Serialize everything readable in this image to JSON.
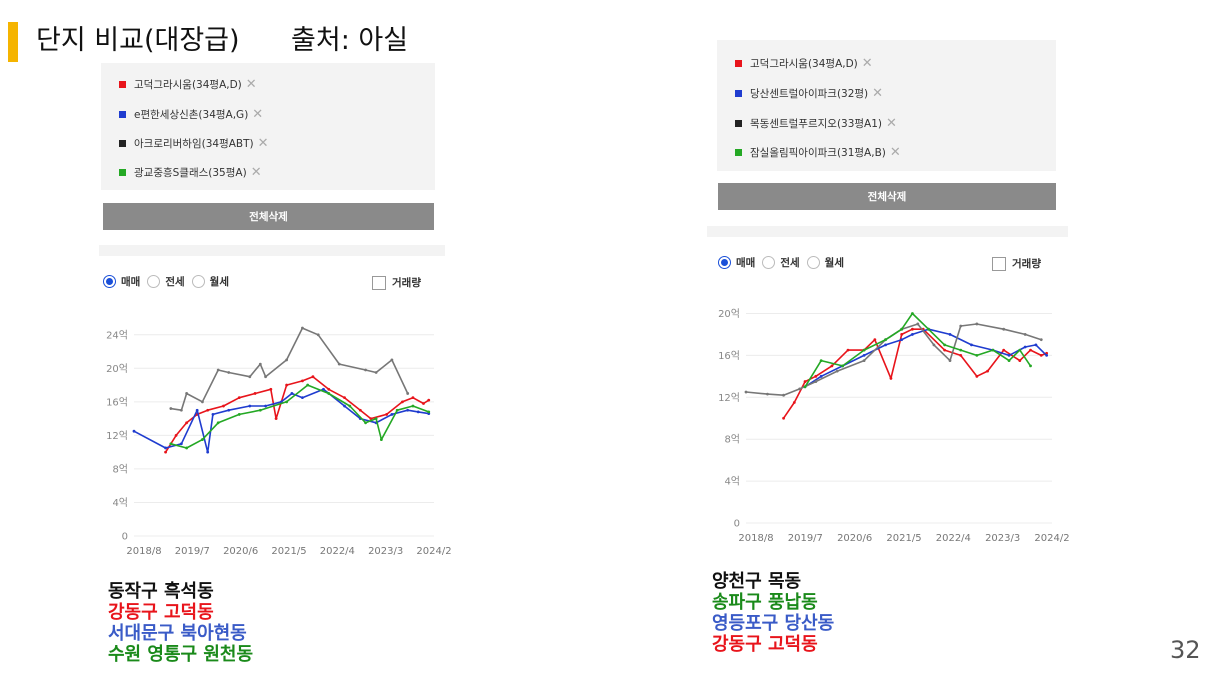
{
  "slide": {
    "title": "단지 비교(대장급)      출처: 아실",
    "page_number": "32",
    "colors": {
      "title_accent": "#f5b400"
    }
  },
  "left_panel": {
    "legend": [
      {
        "label": "고덕그라시움(34평A,D)",
        "color": "#e8141b"
      },
      {
        "label": "e편한세상신촌(34평A,G)",
        "color": "#1f3ccf"
      },
      {
        "label": "아크로리버하임(34평ABT)",
        "color": "#222222"
      },
      {
        "label": "광교중흥S클래스(35평A)",
        "color": "#24a824"
      }
    ],
    "delete_all_label": "전체삭제",
    "radios": [
      {
        "label": "매매",
        "checked": true
      },
      {
        "label": "전세",
        "checked": false
      },
      {
        "label": "월세",
        "checked": false
      }
    ],
    "volume_checkbox_label": "거래량",
    "captions": [
      {
        "text": "동작구 흑석동",
        "color": "#111111"
      },
      {
        "text": "강동구 고덕동",
        "color": "#e8141b"
      },
      {
        "text": "서대문구 북아현동",
        "color": "#3a5bc7"
      },
      {
        "text": "수원 영통구 원천동",
        "color": "#1a8a1a"
      }
    ]
  },
  "right_panel": {
    "legend": [
      {
        "label": "고덕그라시움(34평A,D)",
        "color": "#e8141b"
      },
      {
        "label": "당산센트럴아이파크(32평)",
        "color": "#1f3ccf"
      },
      {
        "label": "목동센트럴푸르지오(33평A1)",
        "color": "#222222"
      },
      {
        "label": "잠실올림픽아이파크(31평A,B)",
        "color": "#24a824"
      }
    ],
    "delete_all_label": "전체삭제",
    "radios": [
      {
        "label": "매매",
        "checked": true
      },
      {
        "label": "전세",
        "checked": false
      },
      {
        "label": "월세",
        "checked": false
      }
    ],
    "volume_checkbox_label": "거래량",
    "captions": [
      {
        "text": "양천구 목동",
        "color": "#111111"
      },
      {
        "text": "송파구 풍납동",
        "color": "#1a8a1a"
      },
      {
        "text": "영등포구 당산동",
        "color": "#3a5bc7"
      },
      {
        "text": "강동구 고덕동",
        "color": "#e8141b"
      }
    ]
  },
  "chart_data": [
    {
      "type": "line",
      "title": "",
      "xlabel": "",
      "ylabel": "",
      "x_ticks": [
        "2018/8",
        "2019/7",
        "2020/6",
        "2021/5",
        "2022/4",
        "2023/3",
        "2024/2"
      ],
      "y_ticks": [
        "0",
        "4억",
        "8억",
        "12억",
        "16억",
        "20억",
        "24억"
      ],
      "ylim": [
        0,
        26
      ],
      "xlim": [
        2018.6,
        2024.3
      ],
      "grid": true,
      "series": [
        {
          "name": "고덕그라시움(34평A,D)",
          "color": "#e8141b",
          "x": [
            2019.2,
            2019.4,
            2019.6,
            2019.8,
            2020.0,
            2020.3,
            2020.6,
            2020.9,
            2021.2,
            2021.3,
            2021.5,
            2021.8,
            2022.0,
            2022.3,
            2022.6,
            2022.9,
            2023.1,
            2023.4,
            2023.7,
            2023.9,
            2024.1,
            2024.2
          ],
          "y": [
            10.0,
            12.0,
            13.5,
            14.5,
            15.0,
            15.5,
            16.5,
            17.0,
            17.5,
            14.0,
            18.0,
            18.5,
            19.0,
            17.5,
            16.5,
            15.0,
            14.0,
            14.5,
            16.0,
            16.5,
            15.8,
            16.2
          ]
        },
        {
          "name": "e편한세상신촌(34평A,G)",
          "color": "#1f3ccf",
          "x": [
            2018.6,
            2019.2,
            2019.5,
            2019.8,
            2020.0,
            2020.1,
            2020.4,
            2020.8,
            2021.1,
            2021.4,
            2021.6,
            2021.8,
            2022.2,
            2022.6,
            2022.9,
            2023.2,
            2023.5,
            2023.8,
            2024.0,
            2024.2
          ],
          "y": [
            12.5,
            10.5,
            11.0,
            15.0,
            10.0,
            14.5,
            15.0,
            15.5,
            15.5,
            16.0,
            17.0,
            16.5,
            17.5,
            15.5,
            14.0,
            13.5,
            14.5,
            15.0,
            14.8,
            14.6
          ]
        },
        {
          "name": "아크로리버하임(34평ABT)",
          "color": "#777777",
          "x": [
            2019.3,
            2019.5,
            2019.6,
            2019.9,
            2020.2,
            2020.4,
            2020.8,
            2021.0,
            2021.1,
            2021.5,
            2021.8,
            2022.1,
            2022.5,
            2023.0,
            2023.2,
            2023.5,
            2023.8
          ],
          "y": [
            15.2,
            15.0,
            17.0,
            16.0,
            19.8,
            19.5,
            19.0,
            20.5,
            19.0,
            21.0,
            24.8,
            24.0,
            20.5,
            19.8,
            19.5,
            21.0,
            17.0
          ]
        },
        {
          "name": "광교중흥S클래스(35평A)",
          "color": "#24a824",
          "x": [
            2019.3,
            2019.6,
            2019.9,
            2020.2,
            2020.6,
            2021.0,
            2021.5,
            2021.9,
            2022.3,
            2022.7,
            2023.0,
            2023.2,
            2023.3,
            2023.6,
            2023.9,
            2024.2
          ],
          "y": [
            11.0,
            10.5,
            11.5,
            13.5,
            14.5,
            15.0,
            16.0,
            18.0,
            17.0,
            15.5,
            13.5,
            14.0,
            11.5,
            15.0,
            15.5,
            14.8
          ]
        }
      ]
    },
    {
      "type": "line",
      "title": "",
      "xlabel": "",
      "ylabel": "",
      "x_ticks": [
        "2018/8",
        "2019/7",
        "2020/6",
        "2021/5",
        "2022/4",
        "2023/3",
        "2024/2"
      ],
      "y_ticks": [
        "0",
        "4억",
        "8억",
        "12억",
        "16억",
        "20억"
      ],
      "ylim": [
        0,
        21
      ],
      "xlim": [
        2018.6,
        2024.3
      ],
      "grid": true,
      "series": [
        {
          "name": "고덕그라시움(34평A,D)",
          "color": "#e8141b",
          "x": [
            2019.3,
            2019.5,
            2019.7,
            2019.9,
            2020.2,
            2020.5,
            2020.8,
            2021.0,
            2021.3,
            2021.5,
            2021.7,
            2021.9,
            2022.3,
            2022.6,
            2022.9,
            2023.1,
            2023.4,
            2023.7,
            2023.9,
            2024.1,
            2024.2
          ],
          "y": [
            10.0,
            11.5,
            13.5,
            14.0,
            15.0,
            16.5,
            16.5,
            17.5,
            13.8,
            18.0,
            18.5,
            18.5,
            16.5,
            16.0,
            14.0,
            14.5,
            16.5,
            15.5,
            16.5,
            16.0,
            16.2
          ]
        },
        {
          "name": "당산센트럴아이파크(32평)",
          "color": "#1f3ccf",
          "x": [
            2019.7,
            2020.0,
            2020.4,
            2020.8,
            2021.2,
            2021.5,
            2021.7,
            2022.0,
            2022.4,
            2022.8,
            2023.2,
            2023.5,
            2023.8,
            2024.0,
            2024.2
          ],
          "y": [
            13.0,
            14.0,
            15.0,
            16.0,
            17.0,
            17.5,
            18.0,
            18.5,
            18.0,
            17.0,
            16.5,
            16.0,
            16.8,
            17.0,
            16.0
          ]
        },
        {
          "name": "목동센트럴푸르지오(33평A1)",
          "color": "#777777",
          "x": [
            2018.6,
            2019.0,
            2019.3,
            2019.6,
            2019.9,
            2020.3,
            2020.8,
            2021.2,
            2021.5,
            2021.8,
            2022.1,
            2022.4,
            2022.6,
            2022.9,
            2023.4,
            2023.8,
            2024.1
          ],
          "y": [
            12.5,
            12.3,
            12.2,
            12.8,
            13.5,
            14.5,
            15.5,
            17.5,
            18.5,
            19.0,
            17.0,
            15.5,
            18.8,
            19.0,
            18.5,
            18.0,
            17.5
          ]
        },
        {
          "name": "잠실올림픽아이파크(31평A,B)",
          "color": "#24a824",
          "x": [
            2019.7,
            2020.0,
            2020.4,
            2020.8,
            2021.2,
            2021.5,
            2021.7,
            2022.0,
            2022.3,
            2022.6,
            2022.9,
            2023.2,
            2023.5,
            2023.7,
            2023.9
          ],
          "y": [
            13.0,
            15.5,
            15.0,
            16.5,
            17.5,
            18.5,
            20.0,
            18.5,
            17.0,
            16.5,
            16.0,
            16.5,
            15.5,
            16.5,
            15.0
          ]
        }
      ]
    }
  ]
}
